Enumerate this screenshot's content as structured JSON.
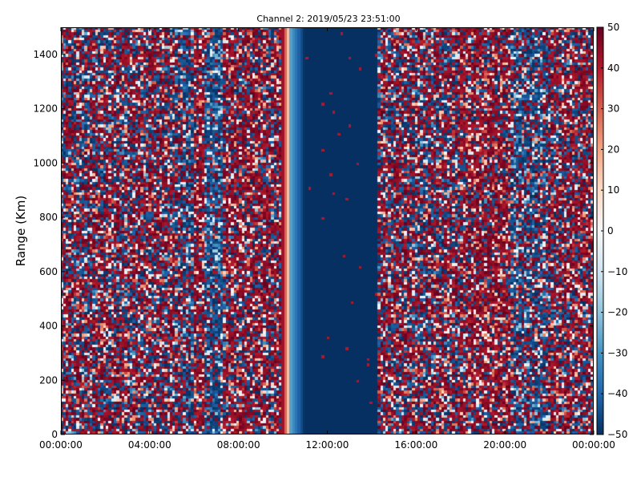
{
  "chart_data": {
    "type": "heatmap",
    "title": "Channel 2: 2019/05/23 23:51:00",
    "xlabel": "",
    "ylabel": "Range (Km)",
    "x_ticks": [
      "00:00:00",
      "04:00:00",
      "08:00:00",
      "12:00:00",
      "16:00:00",
      "20:00:00",
      "00:00:00"
    ],
    "x_tick_hours": [
      0,
      4,
      8,
      12,
      16,
      20,
      24
    ],
    "xlim_hours": [
      0,
      24
    ],
    "ylim": [
      0,
      1500
    ],
    "y_ticks": [
      0,
      200,
      400,
      600,
      800,
      1000,
      1200,
      1400
    ],
    "colorbar": {
      "range": [
        -50,
        50
      ],
      "ticks": [
        50,
        40,
        30,
        20,
        10,
        0,
        -10,
        -20,
        -30,
        -40,
        -50
      ],
      "colormap": "RdBu_r",
      "colors": [
        "#053061",
        "#2166ac",
        "#4393c3",
        "#92c5de",
        "#d1e5f0",
        "#f7f7f7",
        "#fddbc7",
        "#f4a582",
        "#d6604d",
        "#b2182b",
        "#67001f"
      ]
    },
    "bands": [
      {
        "start_h": 0.0,
        "end_h": 5.5,
        "pattern": "noise",
        "red_ratio": 0.55
      },
      {
        "start_h": 5.5,
        "end_h": 6.0,
        "pattern": "noise",
        "red_ratio": 0.3
      },
      {
        "start_h": 6.0,
        "end_h": 6.5,
        "pattern": "noise",
        "red_ratio": 0.75
      },
      {
        "start_h": 6.5,
        "end_h": 7.3,
        "pattern": "noise",
        "red_ratio": 0.2
      },
      {
        "start_h": 7.3,
        "end_h": 10.0,
        "pattern": "noise",
        "red_ratio": 0.65
      },
      {
        "start_h": 10.0,
        "end_h": 10.3,
        "pattern": "gradient",
        "value": 45
      },
      {
        "start_h": 10.3,
        "end_h": 11.0,
        "pattern": "gradient",
        "value": -25
      },
      {
        "start_h": 11.0,
        "end_h": 14.3,
        "pattern": "solid",
        "value": -50
      },
      {
        "start_h": 14.3,
        "end_h": 18.0,
        "pattern": "noise",
        "red_ratio": 0.55
      },
      {
        "start_h": 18.0,
        "end_h": 20.3,
        "pattern": "noise",
        "red_ratio": 0.7
      },
      {
        "start_h": 20.3,
        "end_h": 22.0,
        "pattern": "noise",
        "red_ratio": 0.35
      },
      {
        "start_h": 22.0,
        "end_h": 24.0,
        "pattern": "noise",
        "red_ratio": 0.6
      }
    ]
  }
}
